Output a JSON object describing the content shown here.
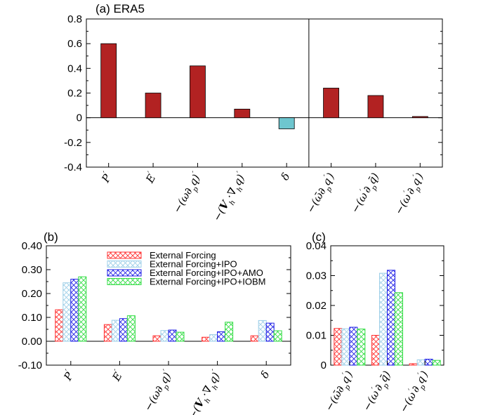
{
  "colors": {
    "positive_bar": "#b22222",
    "negative_bar": "#6ec6cf",
    "hatch_red": "#ff3333",
    "hatch_lightblue": "#9ecfe8",
    "hatch_blue": "#1f1fe6",
    "hatch_green": "#33dd44"
  },
  "chart_data": [
    {
      "panel": "a",
      "type": "bar",
      "title": "(a) ERA5",
      "categories": [
        "P'",
        "E'",
        "-(ω∂pq)'",
        "-(Vh·∇hq)'",
        "δ",
        "-(ω̄∂pq')",
        "-(ω'∂pq̄)",
        "-(ω'∂pq')"
      ],
      "values": [
        0.6,
        0.2,
        0.42,
        0.07,
        -0.09,
        0.24,
        0.18,
        0.01
      ],
      "ylim": [
        -0.4,
        0.8
      ],
      "yticks": [
        -0.4,
        -0.2,
        0,
        0.2,
        0.4,
        0.6,
        0.8
      ],
      "ytick_labels": [
        "-0.4",
        "-0.2",
        "0",
        "0.2",
        "0.4",
        "0.6",
        "0.8"
      ],
      "separator_after_category": 5
    },
    {
      "panel": "b",
      "type": "bar",
      "title": "(b)",
      "categories": [
        "P'",
        "E'",
        "-(ω∂pq)'",
        "-(Vh·∇hq)'",
        "δ"
      ],
      "series": [
        {
          "name": "External Forcing",
          "values": [
            0.132,
            0.07,
            0.023,
            0.017,
            0.023
          ]
        },
        {
          "name": "External Forcing+IPO",
          "values": [
            0.245,
            0.088,
            0.045,
            0.028,
            0.087
          ]
        },
        {
          "name": "External Forcing+IPO+AMO",
          "values": [
            0.26,
            0.095,
            0.047,
            0.04,
            0.076
          ]
        },
        {
          "name": "External Forcing+IPO+IOBM",
          "values": [
            0.27,
            0.107,
            0.038,
            0.08,
            0.044
          ]
        }
      ],
      "ylim": [
        -0.1,
        0.4
      ],
      "yticks": [
        -0.1,
        0,
        0.1,
        0.2,
        0.3,
        0.4
      ],
      "ytick_labels": [
        "-0.10",
        "0.00",
        "0.10",
        "0.20",
        "0.30",
        "0.40"
      ],
      "legend": [
        "External Forcing",
        "External Forcing+IPO",
        "External Forcing+IPO+AMO",
        "External Forcing+IPO+IOBM"
      ],
      "legend_position": "top-right"
    },
    {
      "panel": "c",
      "type": "bar",
      "title": "(c)",
      "categories": [
        "-(ω̄∂pq')",
        "-(ω'∂pq̄)",
        "-(ω'∂pq')"
      ],
      "series": [
        {
          "name": "External Forcing",
          "values": [
            0.0123,
            0.01,
            0.0005
          ]
        },
        {
          "name": "External Forcing+IPO",
          "values": [
            0.0122,
            0.0308,
            0.0018
          ]
        },
        {
          "name": "External Forcing+IPO+AMO",
          "values": [
            0.0127,
            0.0318,
            0.002
          ]
        },
        {
          "name": "External Forcing+IPO+IOBM",
          "values": [
            0.0121,
            0.0243,
            0.0016
          ]
        }
      ],
      "ylim": [
        0,
        0.04
      ],
      "yticks": [
        0,
        0.01,
        0.02,
        0.03,
        0.04
      ],
      "ytick_labels": [
        "0",
        "0.01",
        "0.02",
        "0.03",
        "0.04"
      ]
    }
  ]
}
